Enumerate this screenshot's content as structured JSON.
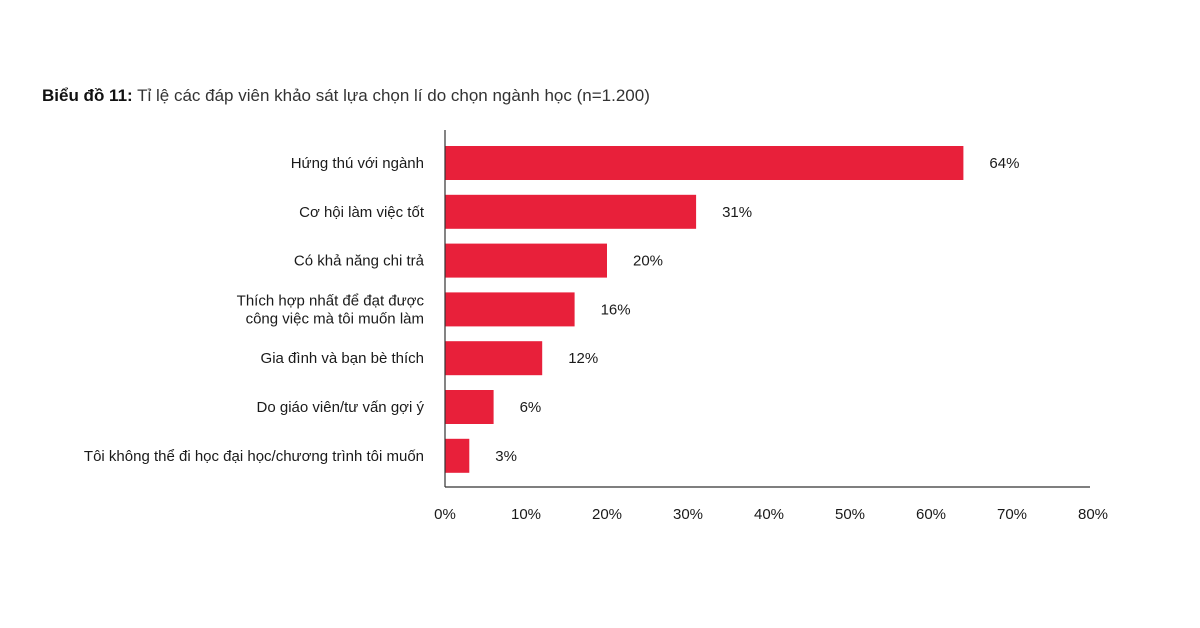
{
  "chart_data": {
    "type": "bar",
    "orientation": "horizontal",
    "title_prefix": "Biểu đồ 11:",
    "title": "Tỉ lệ các đáp viên khảo sát lựa chọn lí do chọn ngành học (n=1.200)",
    "categories": [
      [
        "Hứng thú với ngành"
      ],
      [
        "Cơ hội làm việc tốt"
      ],
      [
        "Có khả năng chi trả"
      ],
      [
        "Thích hợp nhất để đạt được",
        "công việc mà tôi muốn làm"
      ],
      [
        "Gia đình và bạn bè thích"
      ],
      [
        "Do giáo viên/tư vấn gợi ý"
      ],
      [
        "Tôi không thể đi học đại học/chương trình tôi muốn"
      ]
    ],
    "values": [
      64,
      31,
      20,
      16,
      12,
      6,
      3
    ],
    "value_labels": [
      "64%",
      "31%",
      "20%",
      "16%",
      "12%",
      "6%",
      "3%"
    ],
    "xlim": [
      0,
      80
    ],
    "xticks": [
      0,
      10,
      20,
      30,
      40,
      50,
      60,
      70,
      80
    ],
    "xtick_labels": [
      "0%",
      "10%",
      "20%",
      "30%",
      "40%",
      "50%",
      "60%",
      "70%",
      "80%"
    ],
    "xlabel": "",
    "ylabel": "",
    "grid": false,
    "legend": "none",
    "bar_color": "#e8203a",
    "axis_color": "#333333"
  }
}
